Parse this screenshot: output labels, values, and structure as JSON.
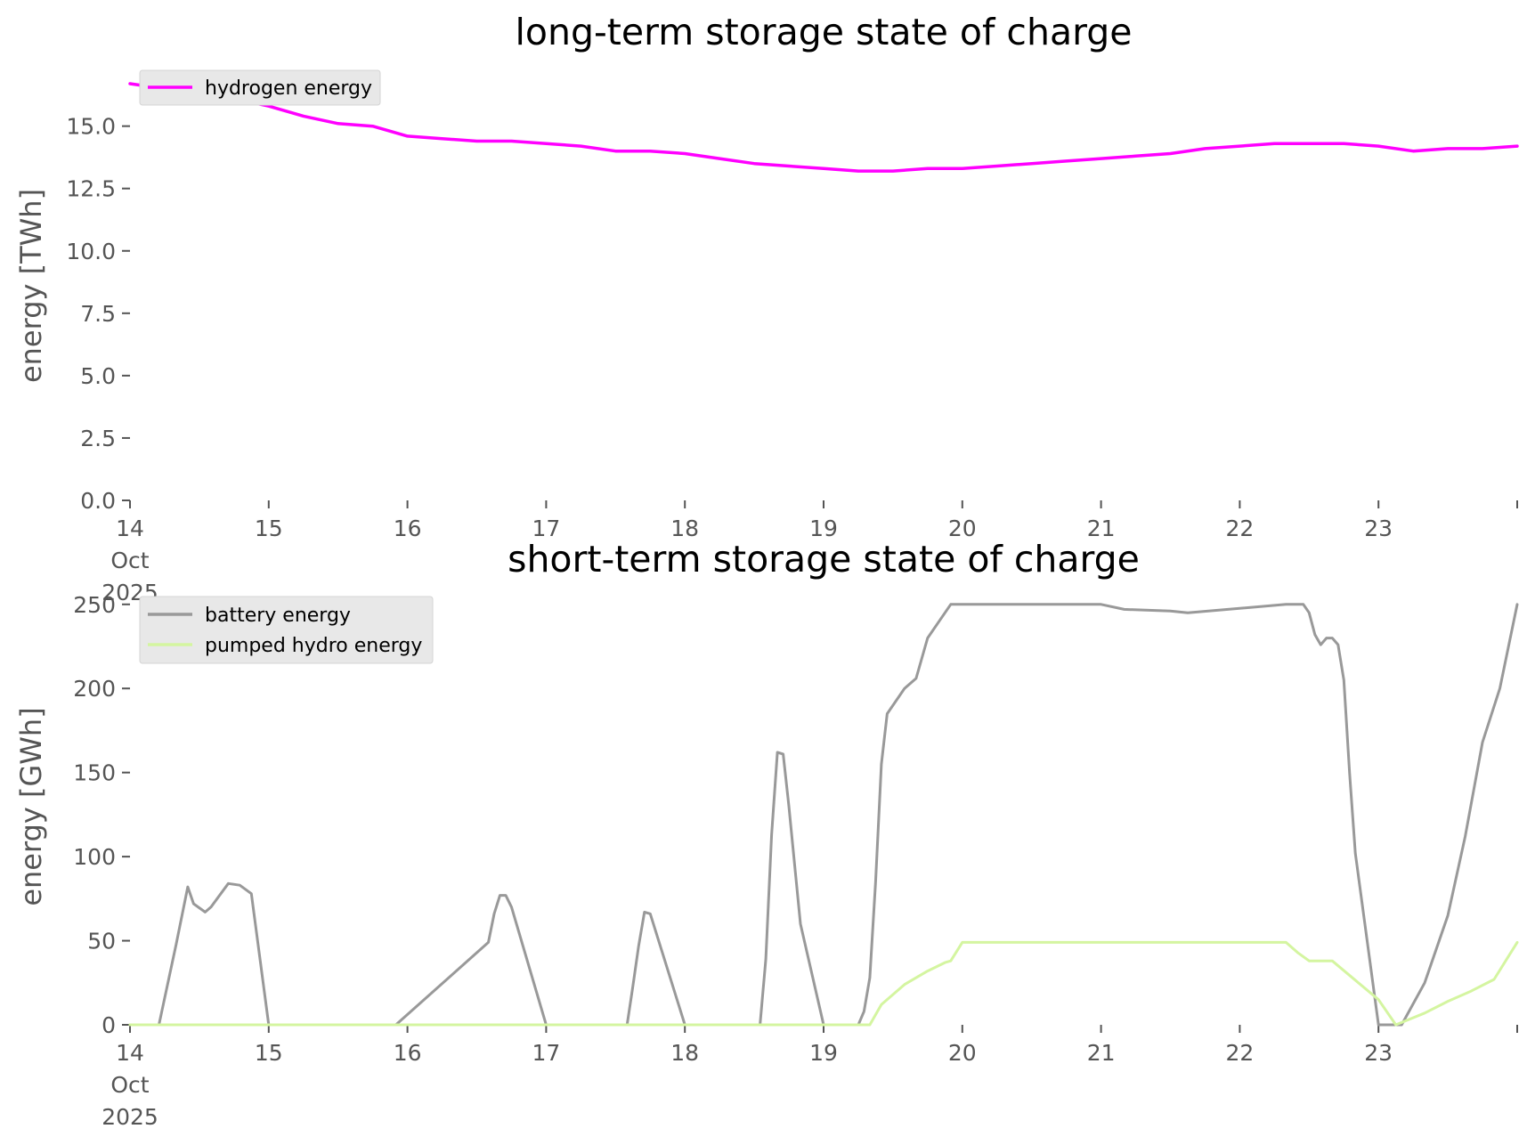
{
  "chart_data": [
    {
      "type": "line",
      "title": "long-term storage state of charge",
      "xlabel": "",
      "ylabel": "energy [TWh]",
      "ylim": [
        0,
        17.2
      ],
      "yticks": [
        0,
        2.5,
        5,
        7.5,
        10,
        12.5,
        15
      ],
      "ytick_labels": [
        "0.0",
        "2.5",
        "5.0",
        "7.5",
        "10.0",
        "12.5",
        "15.0"
      ],
      "xlim": [
        "2025-10-14",
        "2025-10-24"
      ],
      "xticks": [
        "2025-10-14",
        "2025-10-15",
        "2025-10-16",
        "2025-10-17",
        "2025-10-18",
        "2025-10-19",
        "2025-10-20",
        "2025-10-21",
        "2025-10-22",
        "2025-10-23"
      ],
      "xtick_labels": [
        [
          "14",
          "Oct",
          "2025"
        ],
        [
          "15"
        ],
        [
          "16"
        ],
        [
          "17"
        ],
        [
          "18"
        ],
        [
          "19"
        ],
        [
          "20"
        ],
        [
          "21"
        ],
        [
          "22"
        ],
        [
          "23"
        ]
      ],
      "grid": false,
      "legend": "top-left",
      "x": [
        "2025-10-14T00:00",
        "2025-10-14T06:00",
        "2025-10-14T12:00",
        "2025-10-14T18:00",
        "2025-10-15T00:00",
        "2025-10-15T06:00",
        "2025-10-15T12:00",
        "2025-10-15T18:00",
        "2025-10-16T00:00",
        "2025-10-16T06:00",
        "2025-10-16T12:00",
        "2025-10-16T18:00",
        "2025-10-17T00:00",
        "2025-10-17T06:00",
        "2025-10-17T12:00",
        "2025-10-17T18:00",
        "2025-10-18T00:00",
        "2025-10-18T06:00",
        "2025-10-18T12:00",
        "2025-10-18T18:00",
        "2025-10-19T00:00",
        "2025-10-19T06:00",
        "2025-10-19T12:00",
        "2025-10-19T18:00",
        "2025-10-20T00:00",
        "2025-10-20T06:00",
        "2025-10-20T12:00",
        "2025-10-20T18:00",
        "2025-10-21T00:00",
        "2025-10-21T06:00",
        "2025-10-21T12:00",
        "2025-10-21T18:00",
        "2025-10-22T00:00",
        "2025-10-22T06:00",
        "2025-10-22T12:00",
        "2025-10-22T18:00",
        "2025-10-23T00:00",
        "2025-10-23T06:00",
        "2025-10-23T12:00",
        "2025-10-23T18:00",
        "2025-10-24T00:00"
      ],
      "series": [
        {
          "name": "hydrogen energy",
          "color": "#ff00ff",
          "values": [
            16.7,
            16.5,
            16.4,
            16.1,
            15.8,
            15.4,
            15.1,
            15.0,
            14.6,
            14.5,
            14.4,
            14.4,
            14.3,
            14.2,
            14.0,
            14.0,
            13.9,
            13.7,
            13.5,
            13.4,
            13.3,
            13.2,
            13.2,
            13.3,
            13.3,
            13.4,
            13.5,
            13.6,
            13.7,
            13.8,
            13.9,
            14.1,
            14.2,
            14.3,
            14.3,
            14.3,
            14.2,
            14.0,
            14.1,
            14.1,
            14.2
          ]
        }
      ]
    },
    {
      "type": "line",
      "title": "short-term storage state of charge",
      "xlabel": "",
      "ylabel": "energy [GWh]",
      "ylim": [
        0,
        252
      ],
      "yticks": [
        0,
        50,
        100,
        150,
        200,
        250
      ],
      "ytick_labels": [
        "0",
        "50",
        "100",
        "150",
        "200",
        "250"
      ],
      "xlim": [
        "2025-10-14",
        "2025-10-24"
      ],
      "xticks": [
        "2025-10-14",
        "2025-10-15",
        "2025-10-16",
        "2025-10-17",
        "2025-10-18",
        "2025-10-19",
        "2025-10-20",
        "2025-10-21",
        "2025-10-22",
        "2025-10-23"
      ],
      "xtick_labels": [
        [
          "14",
          "Oct",
          "2025"
        ],
        [
          "15"
        ],
        [
          "16"
        ],
        [
          "17"
        ],
        [
          "18"
        ],
        [
          "19"
        ],
        [
          "20"
        ],
        [
          "21"
        ],
        [
          "22"
        ],
        [
          "23"
        ]
      ],
      "grid": false,
      "legend": "top-left",
      "series": [
        {
          "name": "battery energy",
          "color": "#999999",
          "x": [
            "2025-10-14T00:00",
            "2025-10-14T05:00",
            "2025-10-14T08:00",
            "2025-10-14T10:00",
            "2025-10-14T11:00",
            "2025-10-14T13:00",
            "2025-10-14T14:00",
            "2025-10-14T17:00",
            "2025-10-14T19:00",
            "2025-10-14T21:00",
            "2025-10-15T00:00",
            "2025-10-15T22:00",
            "2025-10-16T14:00",
            "2025-10-16T15:00",
            "2025-10-16T16:00",
            "2025-10-16T17:00",
            "2025-10-16T18:00",
            "2025-10-17T00:00",
            "2025-10-17T14:00",
            "2025-10-17T15:00",
            "2025-10-17T16:00",
            "2025-10-17T17:00",
            "2025-10-17T18:00",
            "2025-10-18T00:00",
            "2025-10-18T13:00",
            "2025-10-18T14:00",
            "2025-10-18T15:00",
            "2025-10-18T16:00",
            "2025-10-18T17:00",
            "2025-10-18T18:00",
            "2025-10-18T19:00",
            "2025-10-18T20:00",
            "2025-10-19T00:00",
            "2025-10-19T06:00",
            "2025-10-19T07:00",
            "2025-10-19T08:00",
            "2025-10-19T09:00",
            "2025-10-19T10:00",
            "2025-10-19T11:00",
            "2025-10-19T14:00",
            "2025-10-19T16:00",
            "2025-10-19T18:00",
            "2025-10-19T20:00",
            "2025-10-19T22:00",
            "2025-10-20T00:00",
            "2025-10-21T00:00",
            "2025-10-21T04:00",
            "2025-10-21T12:00",
            "2025-10-21T15:00",
            "2025-10-22T08:00",
            "2025-10-22T09:00",
            "2025-10-22T11:00",
            "2025-10-22T12:00",
            "2025-10-22T13:00",
            "2025-10-22T14:00",
            "2025-10-22T15:00",
            "2025-10-22T16:00",
            "2025-10-22T17:00",
            "2025-10-22T18:00",
            "2025-10-22T19:00",
            "2025-10-22T20:00",
            "2025-10-23T00:00",
            "2025-10-23T04:00",
            "2025-10-23T08:00",
            "2025-10-23T12:00",
            "2025-10-23T15:00",
            "2025-10-23T18:00",
            "2025-10-23T21:00",
            "2025-10-24T00:00"
          ],
          "values": [
            0,
            0,
            48,
            82,
            72,
            67,
            70,
            84,
            83,
            78,
            0,
            0,
            49,
            66,
            77,
            77,
            70,
            0,
            0,
            23,
            47,
            67,
            66,
            0,
            0,
            39,
            113,
            162,
            161,
            130,
            95,
            60,
            0,
            0,
            8,
            28,
            85,
            155,
            185,
            200,
            206,
            230,
            240,
            250,
            250,
            250,
            247,
            246,
            245,
            250,
            250,
            250,
            245,
            232,
            226,
            230,
            230,
            226,
            205,
            150,
            102,
            0,
            0,
            25,
            65,
            112,
            168,
            200,
            250
          ]
        },
        {
          "name": "pumped hydro energy",
          "color": "#d4f5a0",
          "x": [
            "2025-10-14T00:00",
            "2025-10-19T08:00",
            "2025-10-19T10:00",
            "2025-10-19T14:00",
            "2025-10-19T18:00",
            "2025-10-19T21:00",
            "2025-10-19T22:00",
            "2025-10-20T00:00",
            "2025-10-22T08:00",
            "2025-10-22T10:00",
            "2025-10-22T12:00",
            "2025-10-22T16:00",
            "2025-10-23T00:00",
            "2025-10-23T03:00",
            "2025-10-23T08:00",
            "2025-10-23T12:00",
            "2025-10-23T16:00",
            "2025-10-23T20:00",
            "2025-10-24T00:00"
          ],
          "values": [
            0,
            0,
            12,
            24,
            32,
            37,
            38,
            49,
            49,
            43,
            38,
            38,
            15,
            0,
            7,
            14,
            20,
            27,
            49
          ]
        }
      ]
    }
  ]
}
